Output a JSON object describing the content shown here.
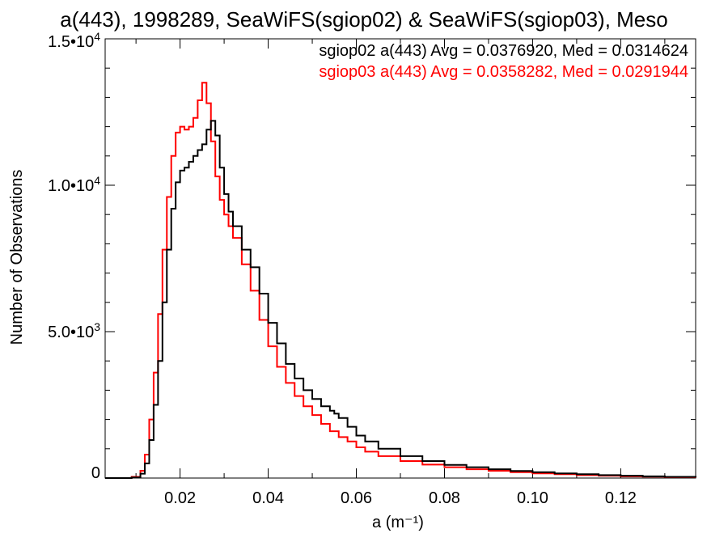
{
  "chart_data": {
    "type": "line",
    "title": "a(443), 1998289, SeaWiFS(sgiop02) & SeaWiFS(sgiop03), Meso",
    "xlabel": "a (m⁻¹)",
    "ylabel": "Number of Observations",
    "xlim": [
      0.003,
      0.137
    ],
    "ylim": [
      0,
      15000
    ],
    "x_ticks": [
      0.02,
      0.04,
      0.06,
      0.08,
      0.1,
      0.12
    ],
    "x_tick_labels": [
      "0.02",
      "0.04",
      "0.06",
      "0.08",
      "0.10",
      "0.12"
    ],
    "y_ticks": [
      0,
      5000,
      10000,
      15000
    ],
    "y_tick_labels": [
      {
        "mant": "0",
        "exp": ""
      },
      {
        "mant": "5.0•10",
        "exp": "3"
      },
      {
        "mant": "1.0•10",
        "exp": "4"
      },
      {
        "mant": "1.5•10",
        "exp": "4"
      }
    ],
    "grid": false,
    "legend_position": "top-right",
    "series": [
      {
        "name": "sgiop02",
        "color": "#000000",
        "stats_label": "sgiop02 a(443) Avg = 0.0376920, Med = 0.0314624",
        "x": [
          0.003,
          0.009,
          0.011,
          0.012,
          0.013,
          0.014,
          0.015,
          0.016,
          0.017,
          0.018,
          0.019,
          0.02,
          0.021,
          0.022,
          0.023,
          0.024,
          0.025,
          0.026,
          0.027,
          0.028,
          0.029,
          0.03,
          0.031,
          0.032,
          0.034,
          0.036,
          0.038,
          0.04,
          0.042,
          0.044,
          0.046,
          0.048,
          0.05,
          0.052,
          0.054,
          0.055,
          0.056,
          0.058,
          0.06,
          0.062,
          0.065,
          0.07,
          0.075,
          0.08,
          0.085,
          0.09,
          0.095,
          0.1,
          0.105,
          0.11,
          0.115,
          0.12,
          0.125,
          0.13,
          0.137
        ],
        "y": [
          0,
          20,
          150,
          500,
          1300,
          2500,
          4000,
          6000,
          7800,
          9200,
          10100,
          10500,
          10600,
          10800,
          11000,
          11200,
          11400,
          11900,
          12200,
          11700,
          10600,
          9700,
          9100,
          8600,
          7800,
          7200,
          6300,
          5300,
          4600,
          3900,
          3400,
          3000,
          2700,
          2450,
          2300,
          2200,
          2050,
          1750,
          1450,
          1250,
          1000,
          750,
          580,
          450,
          370,
          300,
          240,
          200,
          160,
          130,
          100,
          80,
          60,
          40,
          20
        ]
      },
      {
        "name": "sgiop03",
        "color": "#ff0000",
        "stats_label": "sgiop03 a(443) Avg = 0.0358282, Med = 0.0291944",
        "x": [
          0.003,
          0.009,
          0.011,
          0.012,
          0.013,
          0.014,
          0.015,
          0.016,
          0.017,
          0.018,
          0.019,
          0.02,
          0.021,
          0.022,
          0.023,
          0.024,
          0.025,
          0.026,
          0.027,
          0.028,
          0.029,
          0.03,
          0.031,
          0.032,
          0.034,
          0.036,
          0.038,
          0.04,
          0.042,
          0.044,
          0.046,
          0.048,
          0.05,
          0.052,
          0.054,
          0.056,
          0.058,
          0.06,
          0.062,
          0.065,
          0.07,
          0.075,
          0.08,
          0.085,
          0.09,
          0.095,
          0.1,
          0.105,
          0.11,
          0.115,
          0.12,
          0.125,
          0.13,
          0.137
        ],
        "y": [
          0,
          40,
          250,
          800,
          2000,
          3600,
          5600,
          7800,
          9600,
          11000,
          11800,
          12000,
          11900,
          12000,
          12300,
          12900,
          13500,
          12800,
          11500,
          10300,
          9500,
          9000,
          8600,
          8200,
          7300,
          6400,
          5400,
          4500,
          3800,
          3250,
          2800,
          2450,
          2150,
          1850,
          1600,
          1400,
          1250,
          1050,
          900,
          750,
          580,
          460,
          370,
          300,
          250,
          200,
          160,
          130,
          100,
          80,
          60,
          50,
          30,
          15
        ]
      }
    ]
  }
}
